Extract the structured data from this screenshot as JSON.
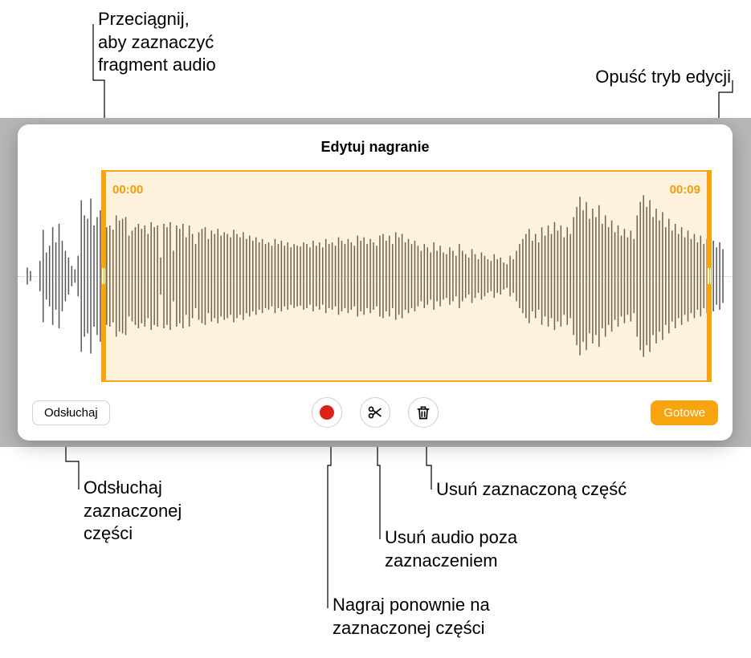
{
  "annotations": {
    "trim_handle": "Przeciągnij,\naby zaznaczyć\nfragment audio",
    "exit_edit": "Opuść tryb edycji",
    "listen": "Odsłuchaj\nzaznaczonej\nczęści",
    "delete_selection": "Usuń zaznaczoną część",
    "trim_outside": "Usuń audio poza\nzaznaczeniem",
    "rerecord": "Nagraj ponownie na\nzaznaczonej części"
  },
  "panel": {
    "title": "Edytuj nagranie",
    "selection_start_time": "00:00",
    "selection_end_time": "00:09",
    "listen_button": "Odsłuchaj",
    "done_button": "Gotowe"
  },
  "waveform": {
    "line_color": "#555555",
    "selection_fill": "rgba(252,174,40,0.16)",
    "selection_border": "#f7a40f",
    "midline_color": "#cccccc",
    "total_bars": 220,
    "amplitudes": [
      0.1,
      0.06,
      0.0,
      0.0,
      0.18,
      0.55,
      0.28,
      0.36,
      0.58,
      0.4,
      0.62,
      0.42,
      0.3,
      0.22,
      0.12,
      0.08,
      0.24,
      0.9,
      0.72,
      0.68,
      0.92,
      0.6,
      0.7,
      0.78,
      0.52,
      0.58,
      0.6,
      0.55,
      0.72,
      0.66,
      0.68,
      0.7,
      0.48,
      0.54,
      0.58,
      0.62,
      0.56,
      0.6,
      0.5,
      0.64,
      0.58,
      0.6,
      0.22,
      0.62,
      0.58,
      0.64,
      0.3,
      0.6,
      0.56,
      0.62,
      0.46,
      0.6,
      0.5,
      0.38,
      0.52,
      0.56,
      0.58,
      0.44,
      0.54,
      0.5,
      0.56,
      0.48,
      0.52,
      0.5,
      0.46,
      0.55,
      0.5,
      0.46,
      0.52,
      0.44,
      0.48,
      0.42,
      0.46,
      0.4,
      0.44,
      0.38,
      0.4,
      0.36,
      0.44,
      0.38,
      0.42,
      0.36,
      0.4,
      0.34,
      0.38,
      0.36,
      0.35,
      0.4,
      0.38,
      0.34,
      0.42,
      0.36,
      0.4,
      0.34,
      0.44,
      0.38,
      0.4,
      0.36,
      0.46,
      0.42,
      0.38,
      0.44,
      0.4,
      0.36,
      0.48,
      0.42,
      0.46,
      0.38,
      0.44,
      0.4,
      0.36,
      0.48,
      0.5,
      0.42,
      0.48,
      0.38,
      0.52,
      0.46,
      0.5,
      0.4,
      0.44,
      0.38,
      0.42,
      0.36,
      0.3,
      0.38,
      0.34,
      0.28,
      0.4,
      0.3,
      0.36,
      0.28,
      0.26,
      0.34,
      0.3,
      0.24,
      0.38,
      0.3,
      0.26,
      0.22,
      0.32,
      0.26,
      0.2,
      0.28,
      0.24,
      0.2,
      0.18,
      0.26,
      0.2,
      0.22,
      0.16,
      0.14,
      0.24,
      0.2,
      0.3,
      0.38,
      0.44,
      0.5,
      0.56,
      0.42,
      0.5,
      0.4,
      0.58,
      0.48,
      0.6,
      0.5,
      0.64,
      0.54,
      0.6,
      0.46,
      0.58,
      0.5,
      0.7,
      0.82,
      0.94,
      0.78,
      0.88,
      0.68,
      0.8,
      0.7,
      0.84,
      0.62,
      0.72,
      0.58,
      0.66,
      0.52,
      0.6,
      0.48,
      0.56,
      0.46,
      0.54,
      0.44,
      0.72,
      0.88,
      0.96,
      0.82,
      0.9,
      0.7,
      0.8,
      0.66,
      0.76,
      0.58,
      0.68,
      0.54,
      0.62,
      0.5,
      0.58,
      0.46,
      0.54,
      0.44,
      0.5,
      0.4,
      0.48,
      0.38,
      0.44,
      0.36,
      0.42,
      0.34,
      0.4,
      0.32
    ]
  },
  "colors": {
    "panel_bg": "#ffffff",
    "backdrop": "#b7b7b7",
    "accent": "#f7a40f",
    "record": "#d9231a",
    "text": "#000000",
    "icon": "#000000",
    "button_border": "#d0d0d0"
  }
}
